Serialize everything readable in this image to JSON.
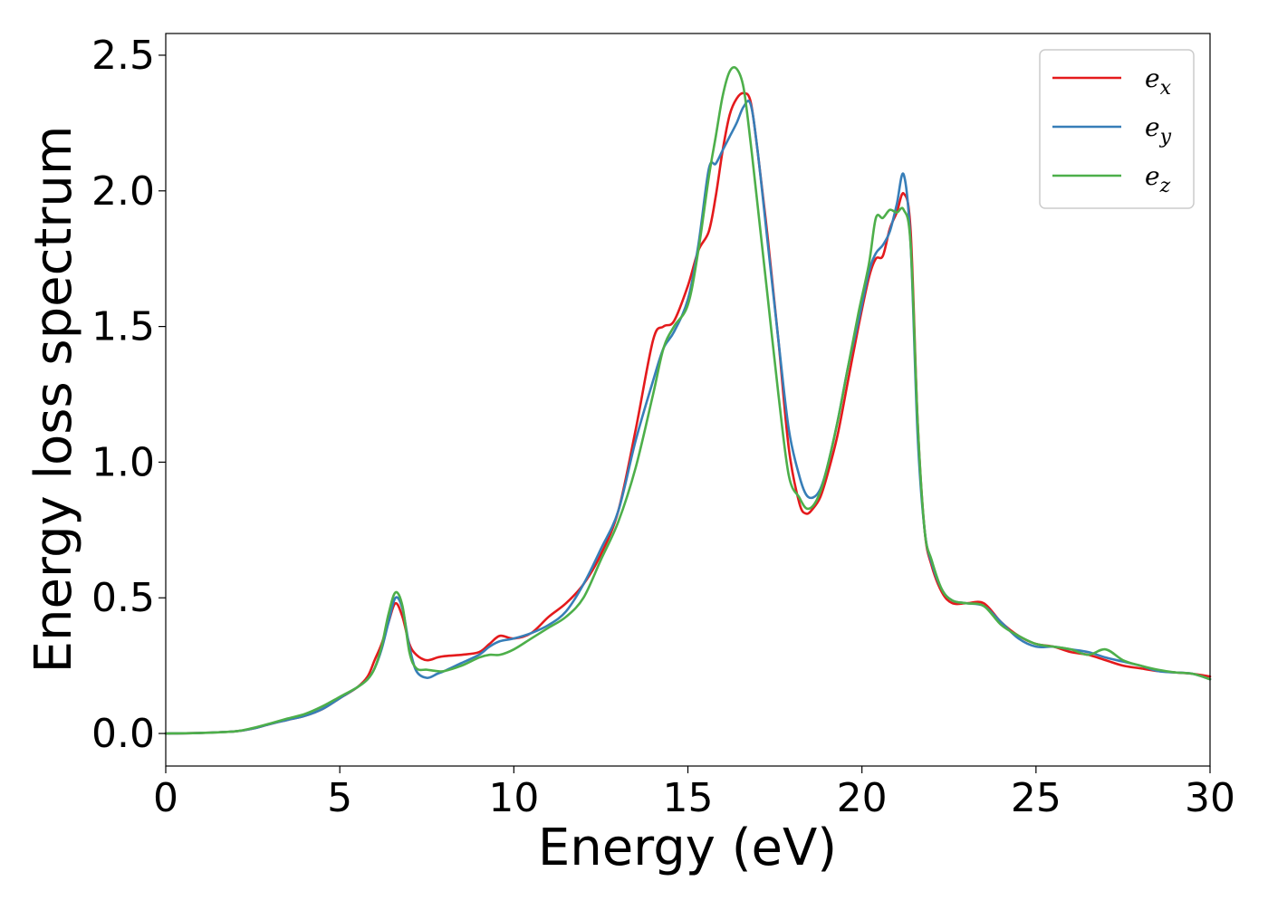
{
  "chart_data": {
    "type": "line",
    "xlabel": "Energy (eV)",
    "ylabel": "Energy loss spectrum",
    "xlim": [
      0,
      30
    ],
    "ylim": [
      -0.12,
      2.58
    ],
    "xticks": [
      0,
      5,
      10,
      15,
      20,
      25,
      30
    ],
    "xtick_labels": [
      "0",
      "5",
      "10",
      "15",
      "20",
      "25",
      "30"
    ],
    "yticks": [
      0.0,
      0.5,
      1.0,
      1.5,
      2.0,
      2.5
    ],
    "ytick_labels": [
      "0.0",
      "0.5",
      "1.0",
      "1.5",
      "2.0",
      "2.5"
    ],
    "grid": false,
    "legend_position": "top-right",
    "series": [
      {
        "name": "e_x",
        "legend_base": "e",
        "legend_sub": "x",
        "color": "#e41a1c",
        "x": [
          0,
          1,
          2,
          2.5,
          3,
          3.5,
          4,
          4.5,
          5,
          5.5,
          5.8,
          6,
          6.2,
          6.4,
          6.6,
          6.8,
          7,
          7.2,
          7.5,
          7.8,
          8,
          8.5,
          9,
          9.3,
          9.6,
          10,
          10.5,
          11,
          11.5,
          12,
          12.5,
          13,
          13.5,
          14,
          14.3,
          14.6,
          15,
          15.3,
          15.6,
          15.8,
          16,
          16.2,
          16.4,
          16.6,
          16.8,
          17,
          17.3,
          17.6,
          17.9,
          18.2,
          18.4,
          18.6,
          18.8,
          19,
          19.3,
          19.6,
          19.9,
          20.2,
          20.4,
          20.6,
          20.8,
          21,
          21.2,
          21.4,
          21.6,
          21.8,
          22,
          22.3,
          22.6,
          23,
          23.5,
          24,
          24.5,
          25,
          25.5,
          26,
          26.5,
          27,
          27.5,
          28,
          28.5,
          29,
          29.5,
          30
        ],
        "y": [
          0.0,
          0.002,
          0.008,
          0.018,
          0.035,
          0.05,
          0.065,
          0.09,
          0.13,
          0.17,
          0.21,
          0.27,
          0.33,
          0.41,
          0.48,
          0.43,
          0.33,
          0.29,
          0.27,
          0.28,
          0.285,
          0.29,
          0.3,
          0.33,
          0.36,
          0.35,
          0.37,
          0.43,
          0.48,
          0.55,
          0.66,
          0.82,
          1.12,
          1.45,
          1.5,
          1.52,
          1.65,
          1.78,
          1.85,
          1.98,
          2.15,
          2.28,
          2.34,
          2.36,
          2.33,
          2.15,
          1.82,
          1.45,
          1.05,
          0.85,
          0.81,
          0.83,
          0.87,
          0.95,
          1.1,
          1.3,
          1.5,
          1.68,
          1.75,
          1.76,
          1.86,
          1.92,
          1.99,
          1.85,
          1.15,
          0.75,
          0.62,
          0.52,
          0.48,
          0.48,
          0.48,
          0.41,
          0.36,
          0.33,
          0.32,
          0.3,
          0.29,
          0.27,
          0.25,
          0.24,
          0.23,
          0.225,
          0.22,
          0.21
        ]
      },
      {
        "name": "e_y",
        "legend_base": "e",
        "legend_sub": "y",
        "color": "#377eb8",
        "x": [
          0,
          1,
          2,
          2.5,
          3,
          3.5,
          4,
          4.5,
          5,
          5.5,
          5.8,
          6,
          6.2,
          6.4,
          6.6,
          6.8,
          7,
          7.2,
          7.5,
          7.8,
          8,
          8.5,
          9,
          9.3,
          9.6,
          10,
          10.5,
          11,
          11.5,
          12,
          12.5,
          13,
          13.5,
          14,
          14.3,
          14.6,
          15,
          15.3,
          15.6,
          15.8,
          16,
          16.2,
          16.4,
          16.6,
          16.8,
          17,
          17.3,
          17.6,
          17.9,
          18.2,
          18.4,
          18.6,
          18.8,
          19,
          19.3,
          19.6,
          19.9,
          20.2,
          20.4,
          20.6,
          20.8,
          21,
          21.2,
          21.4,
          21.6,
          21.8,
          22,
          22.3,
          22.6,
          23,
          23.5,
          24,
          24.5,
          25,
          25.5,
          26,
          26.5,
          27,
          27.5,
          28,
          28.5,
          29,
          29.5,
          30
        ],
        "y": [
          0.0,
          0.002,
          0.008,
          0.018,
          0.035,
          0.05,
          0.065,
          0.09,
          0.13,
          0.17,
          0.2,
          0.24,
          0.31,
          0.41,
          0.5,
          0.46,
          0.32,
          0.23,
          0.205,
          0.22,
          0.23,
          0.26,
          0.29,
          0.32,
          0.34,
          0.35,
          0.37,
          0.4,
          0.45,
          0.55,
          0.68,
          0.82,
          1.08,
          1.3,
          1.42,
          1.48,
          1.6,
          1.8,
          2.08,
          2.1,
          2.15,
          2.2,
          2.25,
          2.31,
          2.32,
          2.15,
          1.8,
          1.45,
          1.12,
          0.95,
          0.88,
          0.87,
          0.9,
          0.98,
          1.15,
          1.35,
          1.52,
          1.7,
          1.77,
          1.8,
          1.85,
          1.95,
          2.06,
          1.8,
          1.1,
          0.75,
          0.63,
          0.53,
          0.49,
          0.48,
          0.47,
          0.41,
          0.35,
          0.32,
          0.32,
          0.31,
          0.3,
          0.28,
          0.265,
          0.25,
          0.23,
          0.225,
          0.22,
          0.2
        ]
      },
      {
        "name": "e_z",
        "legend_base": "e",
        "legend_sub": "z",
        "color": "#4daf4a",
        "x": [
          0,
          1,
          2,
          2.5,
          3,
          3.5,
          4,
          4.5,
          5,
          5.5,
          5.8,
          6,
          6.2,
          6.4,
          6.6,
          6.8,
          7,
          7.2,
          7.5,
          7.8,
          8,
          8.5,
          9,
          9.3,
          9.6,
          10,
          10.5,
          11,
          11.5,
          12,
          12.5,
          13,
          13.5,
          14,
          14.3,
          14.6,
          15,
          15.3,
          15.6,
          15.8,
          16,
          16.2,
          16.4,
          16.6,
          16.8,
          17,
          17.3,
          17.6,
          17.9,
          18.2,
          18.4,
          18.6,
          18.8,
          19,
          19.3,
          19.6,
          19.9,
          20.2,
          20.4,
          20.6,
          20.8,
          21,
          21.2,
          21.4,
          21.6,
          21.8,
          22,
          22.3,
          22.6,
          23,
          23.5,
          24,
          24.5,
          25,
          25.5,
          26,
          26.5,
          27,
          27.5,
          28,
          28.5,
          29,
          29.5,
          30
        ],
        "y": [
          0.0,
          0.002,
          0.008,
          0.02,
          0.037,
          0.055,
          0.072,
          0.1,
          0.135,
          0.17,
          0.2,
          0.24,
          0.32,
          0.44,
          0.52,
          0.47,
          0.3,
          0.24,
          0.235,
          0.23,
          0.23,
          0.25,
          0.28,
          0.29,
          0.29,
          0.31,
          0.35,
          0.39,
          0.43,
          0.5,
          0.64,
          0.78,
          0.98,
          1.25,
          1.42,
          1.5,
          1.58,
          1.78,
          2.05,
          2.2,
          2.35,
          2.44,
          2.45,
          2.38,
          2.18,
          1.95,
          1.6,
          1.25,
          0.95,
          0.87,
          0.83,
          0.84,
          0.89,
          0.98,
          1.15,
          1.35,
          1.55,
          1.73,
          1.9,
          1.9,
          1.93,
          1.92,
          1.93,
          1.8,
          1.15,
          0.75,
          0.64,
          0.53,
          0.49,
          0.48,
          0.47,
          0.4,
          0.36,
          0.33,
          0.32,
          0.31,
          0.29,
          0.31,
          0.27,
          0.25,
          0.235,
          0.225,
          0.22,
          0.2
        ]
      }
    ]
  }
}
